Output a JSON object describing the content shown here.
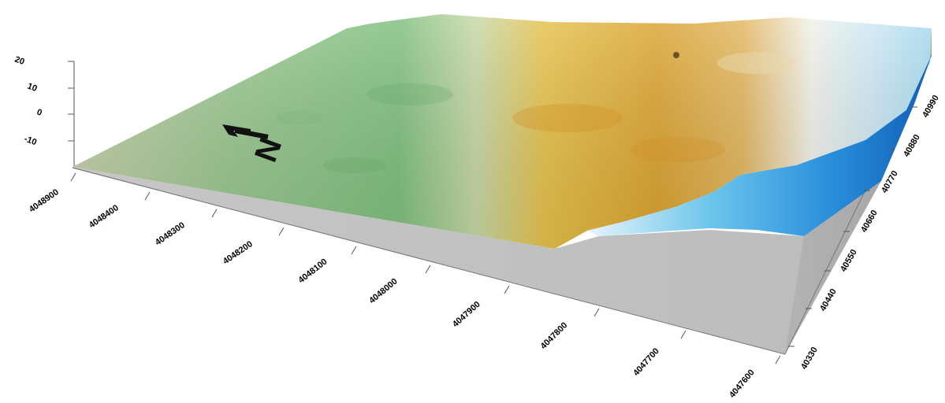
{
  "colors": {
    "surface_green": "#8cc58c",
    "surface_sage": "#b9c9a6",
    "surface_yellow": "#e1b93b",
    "surface_orange": "#d99a2e",
    "surface_white": "#f4f7f2",
    "surface_light_blue": "#bfe3f3",
    "surface_deep_blue": "#1976c9",
    "wall_gray": "#c0c0c0",
    "wall_dark": "#9d9d9d"
  },
  "vertical_axis": {
    "ticks": [
      "20",
      "10",
      "0",
      "-10"
    ]
  },
  "front_axis": {
    "ticks": [
      "4048900",
      "4048400",
      "4048300",
      "4048200",
      "4048100",
      "4048000",
      "4047900",
      "4047800",
      "4047700",
      "4047600"
    ]
  },
  "right_axis": {
    "ticks": [
      "40330",
      "40440",
      "40550",
      "40660",
      "40770",
      "40880",
      "40990"
    ]
  },
  "north_arrow": {
    "label": "N",
    "icon": "north-arrow-icon"
  }
}
